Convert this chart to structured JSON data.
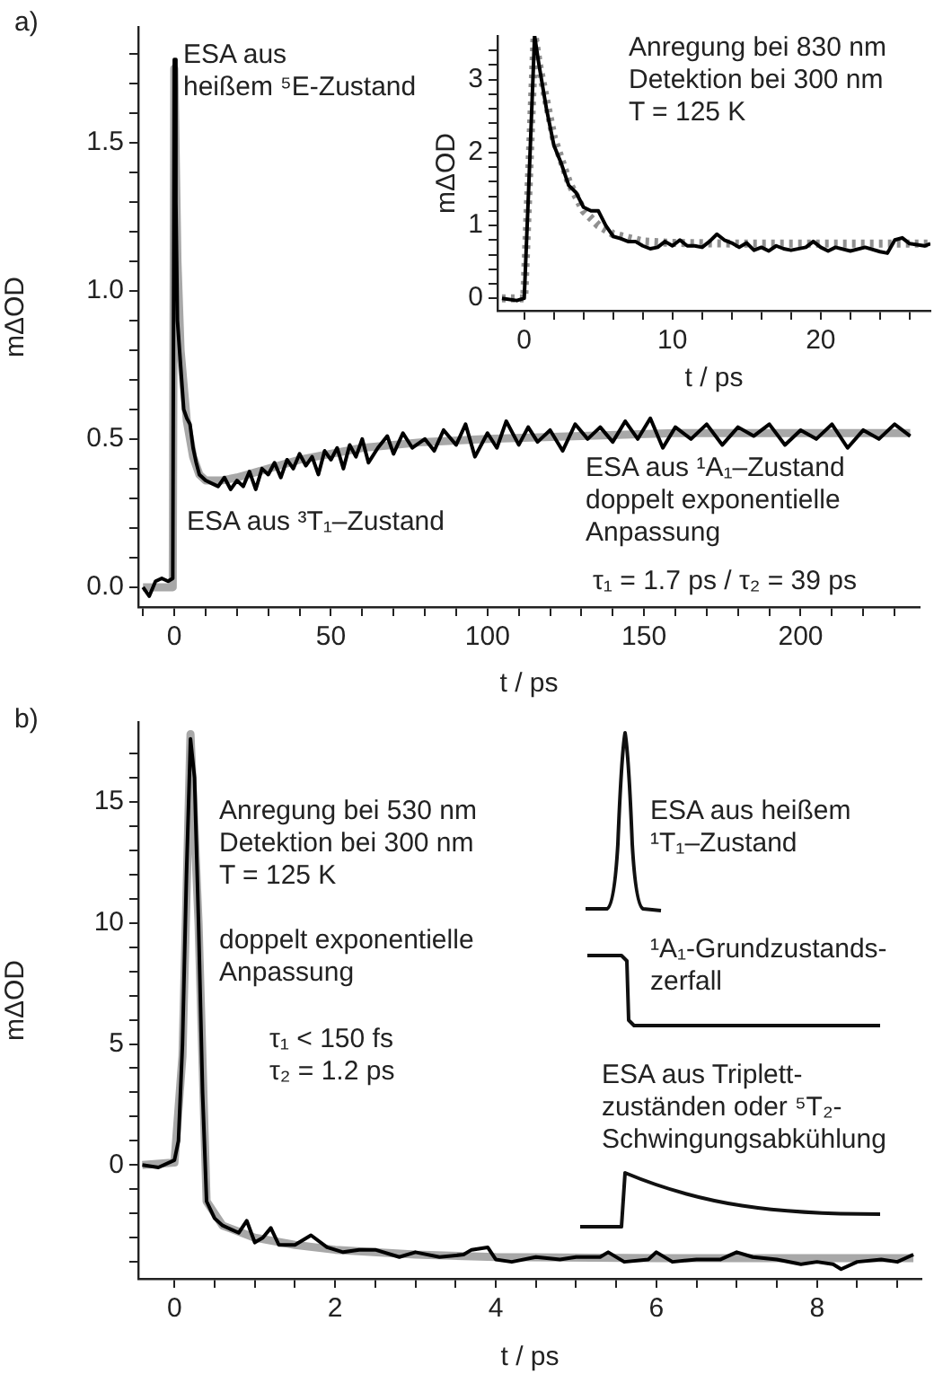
{
  "chart_data": [
    {
      "type": "line",
      "title": "a)",
      "xlabel": "t / ps",
      "ylabel": "mΔOD",
      "legend": false,
      "grid": false,
      "xlim": [
        -11.5,
        238
      ],
      "ylim": [
        -0.067,
        1.89
      ],
      "xticks": [
        0,
        {
          "value": 10,
          "label": null
        },
        {
          "value": 20,
          "label": null
        },
        {
          "value": 30,
          "label": null
        },
        {
          "value": 40,
          "label": null
        },
        50,
        {
          "value": 60,
          "label": null
        },
        {
          "value": 70,
          "label": null
        },
        {
          "value": 80,
          "label": null
        },
        {
          "value": 90,
          "label": null
        },
        100,
        {
          "value": 110,
          "label": null
        },
        {
          "value": 120,
          "label": null
        },
        {
          "value": 130,
          "label": null
        },
        {
          "value": 140,
          "label": null
        },
        150,
        {
          "value": 160,
          "label": null
        },
        {
          "value": 170,
          "label": null
        },
        {
          "value": 180,
          "label": null
        },
        {
          "value": 190,
          "label": null
        },
        200,
        {
          "value": 210,
          "label": null
        },
        {
          "value": 220,
          "label": null
        },
        {
          "value": 230,
          "label": null
        },
        {
          "value": -10,
          "label": null
        }
      ],
      "yticks": [
        {
          "value": 0,
          "label": "0.0"
        },
        {
          "value": 0.1,
          "label": null
        },
        {
          "value": 0.2,
          "label": null
        },
        {
          "value": 0.3,
          "label": null
        },
        {
          "value": 0.4,
          "label": null
        },
        {
          "value": 0.5,
          "label": "0.5"
        },
        {
          "value": 0.6,
          "label": null
        },
        {
          "value": 0.7,
          "label": null
        },
        {
          "value": 0.8,
          "label": null
        },
        {
          "value": 0.9,
          "label": null
        },
        {
          "value": 1,
          "label": "1.0"
        },
        {
          "value": 1.1,
          "label": null
        },
        {
          "value": 1.2,
          "label": null
        },
        {
          "value": 1.3,
          "label": null
        },
        {
          "value": 1.4,
          "label": null
        },
        {
          "value": 1.5,
          "label": "1.5"
        },
        {
          "value": 1.6,
          "label": null
        },
        {
          "value": 1.7,
          "label": null
        },
        {
          "value": 1.8,
          "label": null
        }
      ],
      "series": [
        {
          "color": "#000000",
          "line_style": "solid",
          "x": [
            -10,
            -8,
            -6,
            -4,
            -2,
            -0.5,
            0,
            0.5,
            1,
            2,
            3,
            4,
            5,
            6,
            7,
            8,
            10,
            12,
            14,
            16,
            18,
            20,
            22,
            24,
            26,
            28,
            30,
            32,
            34,
            36,
            38,
            40,
            42,
            44,
            46,
            48,
            50,
            52,
            54,
            56,
            58,
            60,
            62,
            65,
            68,
            70,
            73,
            76,
            80,
            83,
            86,
            90,
            93,
            96,
            100,
            103,
            106,
            110,
            113,
            116,
            120,
            124,
            128,
            132,
            136,
            140,
            144,
            148,
            152,
            156,
            160,
            165,
            170,
            175,
            180,
            185,
            190,
            195,
            200,
            205,
            210,
            215,
            220,
            225,
            230,
            235
          ],
          "values": [
            0,
            -0.03,
            0.02,
            0.03,
            0.02,
            0.03,
            1.78,
            1.3,
            0.9,
            0.75,
            0.6,
            0.57,
            0.55,
            0.47,
            0.42,
            0.38,
            0.36,
            0.35,
            0.34,
            0.37,
            0.33,
            0.36,
            0.34,
            0.39,
            0.33,
            0.4,
            0.38,
            0.42,
            0.37,
            0.43,
            0.4,
            0.45,
            0.41,
            0.44,
            0.38,
            0.46,
            0.43,
            0.47,
            0.4,
            0.48,
            0.44,
            0.5,
            0.42,
            0.47,
            0.51,
            0.45,
            0.52,
            0.47,
            0.5,
            0.46,
            0.53,
            0.48,
            0.55,
            0.44,
            0.52,
            0.47,
            0.56,
            0.48,
            0.54,
            0.49,
            0.53,
            0.46,
            0.55,
            0.5,
            0.54,
            0.49,
            0.56,
            0.5,
            0.57,
            0.47,
            0.54,
            0.5,
            0.55,
            0.48,
            0.54,
            0.51,
            0.55,
            0.48,
            0.53,
            0.5,
            0.55,
            0.47,
            0.53,
            0.5,
            0.55,
            0.51
          ]
        },
        {
          "color": "#a8a8a8",
          "line_style": "solid",
          "x": [
            -10,
            -0.5,
            0,
            1,
            2,
            4,
            6,
            8,
            10,
            15,
            20,
            30,
            40,
            60,
            80,
            100,
            130,
            160,
            200,
            235
          ],
          "values": [
            0,
            0,
            1.75,
            1.1,
            0.8,
            0.56,
            0.44,
            0.38,
            0.36,
            0.36,
            0.37,
            0.4,
            0.43,
            0.47,
            0.49,
            0.5,
            0.51,
            0.52,
            0.52,
            0.52
          ]
        }
      ],
      "annotations": [
        "ESA aus\nheißem ⁵E-Zustand",
        "ESA aus ³T₁–Zustand",
        "ESA aus ¹A₁–Zustand\ndoppelt exponentielle\nAnpassung",
        "τ₁ = 1.7 ps / τ₂ = 39 ps"
      ]
    },
    {
      "type": "line",
      "xlabel": "t / ps",
      "ylabel": "mΔOD",
      "legend": false,
      "grid": false,
      "xlim": [
        -1.8,
        27.4
      ],
      "ylim": [
        -0.17,
        3.6
      ],
      "xticks": [
        0,
        {
          "value": 2,
          "label": null
        },
        {
          "value": 4,
          "label": null
        },
        {
          "value": 6,
          "label": null
        },
        {
          "value": 8,
          "label": null
        },
        10,
        {
          "value": 12,
          "label": null
        },
        {
          "value": 14,
          "label": null
        },
        {
          "value": 16,
          "label": null
        },
        {
          "value": 18,
          "label": null
        },
        20,
        {
          "value": 22,
          "label": null
        },
        {
          "value": 24,
          "label": null
        },
        {
          "value": 26,
          "label": null
        }
      ],
      "yticks": [
        0,
        {
          "value": 0.2,
          "label": null
        },
        {
          "value": 0.4,
          "label": null
        },
        {
          "value": 0.6,
          "label": null
        },
        {
          "value": 0.8,
          "label": null
        },
        1,
        {
          "value": 1.2,
          "label": null
        },
        {
          "value": 1.4,
          "label": null
        },
        {
          "value": 1.6,
          "label": null
        },
        {
          "value": 1.8,
          "label": null
        },
        2,
        {
          "value": 2.2,
          "label": null
        },
        {
          "value": 2.4,
          "label": null
        },
        {
          "value": 2.6,
          "label": null
        },
        {
          "value": 2.8,
          "label": null
        },
        3,
        {
          "value": 3.2,
          "label": null
        },
        {
          "value": 3.4,
          "label": null
        }
      ],
      "series": [
        {
          "color": "#000000",
          "line_style": "solid",
          "x": [
            -1.5,
            -0.5,
            0,
            0.3,
            0.7,
            1,
            1.5,
            2,
            2.5,
            3,
            3.5,
            4,
            4.5,
            5,
            5.5,
            6,
            6.5,
            7,
            7.5,
            8,
            8.5,
            9,
            9.5,
            10,
            10.5,
            11,
            11.5,
            12,
            12.5,
            13,
            13.5,
            14,
            14.5,
            15,
            15.5,
            16,
            16.5,
            17,
            17.5,
            18,
            19,
            19.5,
            20,
            20.5,
            21,
            22,
            23,
            24,
            24.5,
            25,
            25.5,
            26,
            27,
            27.4
          ],
          "values": [
            0,
            -0.03,
            0,
            1.5,
            3.6,
            3.2,
            2.6,
            2.1,
            1.85,
            1.55,
            1.45,
            1.25,
            1.2,
            1.2,
            1,
            0.85,
            0.82,
            0.78,
            0.78,
            0.72,
            0.68,
            0.7,
            0.78,
            0.72,
            0.8,
            0.72,
            0.72,
            0.7,
            0.78,
            0.88,
            0.8,
            0.76,
            0.7,
            0.76,
            0.66,
            0.7,
            0.65,
            0.72,
            0.68,
            0.66,
            0.7,
            0.78,
            0.7,
            0.65,
            0.7,
            0.65,
            0.7,
            0.64,
            0.62,
            0.8,
            0.83,
            0.75,
            0.72,
            0.75
          ]
        },
        {
          "color": "#909090",
          "line_style": "dotted",
          "x": [
            -1.5,
            0,
            0.7,
            1,
            2,
            3,
            4,
            5,
            6,
            8,
            10,
            15,
            20,
            27.4
          ],
          "values": [
            0,
            0,
            3.6,
            3.2,
            2.2,
            1.6,
            1.2,
            1,
            0.88,
            0.78,
            0.76,
            0.75,
            0.75,
            0.75
          ]
        }
      ],
      "annotations": [
        "Anregung bei 830 nm\nDetektion bei 300 nm\nT = 125 K"
      ]
    },
    {
      "type": "line",
      "title": "b)",
      "xlabel": "t / ps",
      "ylabel": "mΔOD",
      "legend": false,
      "grid": false,
      "xlim": [
        -0.45,
        9.3
      ],
      "ylim": [
        -4.7,
        18.3
      ],
      "xticks": [
        0,
        {
          "value": 0.5,
          "label": null
        },
        {
          "value": 1,
          "label": null
        },
        {
          "value": 1.5,
          "label": null
        },
        2,
        {
          "value": 2.5,
          "label": null
        },
        {
          "value": 3,
          "label": null
        },
        {
          "value": 3.5,
          "label": null
        },
        4,
        {
          "value": 4.5,
          "label": null
        },
        {
          "value": 5,
          "label": null
        },
        {
          "value": 5.5,
          "label": null
        },
        6,
        {
          "value": 6.5,
          "label": null
        },
        {
          "value": 7,
          "label": null
        },
        {
          "value": 7.5,
          "label": null
        },
        8,
        {
          "value": 8.5,
          "label": null
        },
        {
          "value": 9,
          "label": null
        }
      ],
      "yticks": [
        {
          "value": -4,
          "label": null
        },
        {
          "value": -3,
          "label": null
        },
        {
          "value": -2,
          "label": null
        },
        {
          "value": -1,
          "label": null
        },
        0,
        {
          "value": 1,
          "label": null
        },
        {
          "value": 2,
          "label": null
        },
        {
          "value": 3,
          "label": null
        },
        {
          "value": 4,
          "label": null
        },
        5,
        {
          "value": 6,
          "label": null
        },
        {
          "value": 7,
          "label": null
        },
        {
          "value": 8,
          "label": null
        },
        {
          "value": 9,
          "label": null
        },
        10,
        {
          "value": 11,
          "label": null
        },
        {
          "value": 12,
          "label": null
        },
        {
          "value": 13,
          "label": null
        },
        {
          "value": 14,
          "label": null
        },
        15,
        {
          "value": 16,
          "label": null
        },
        {
          "value": 17,
          "label": null
        }
      ],
      "series": [
        {
          "color": "#000000",
          "line_style": "solid",
          "x": [
            -0.4,
            -0.2,
            0,
            0.05,
            0.1,
            0.15,
            0.2,
            0.25,
            0.3,
            0.35,
            0.4,
            0.5,
            0.6,
            0.8,
            0.9,
            1,
            1.1,
            1.2,
            1.3,
            1.5,
            1.7,
            1.9,
            2.1,
            2.3,
            2.5,
            2.8,
            3,
            3.3,
            3.6,
            3.7,
            3.9,
            4,
            4.2,
            4.5,
            4.8,
            5,
            5.3,
            5.4,
            5.6,
            5.9,
            6,
            6.2,
            6.5,
            6.8,
            7,
            7.2,
            7.5,
            7.8,
            8,
            8.2,
            8.3,
            8.5,
            8.8,
            9,
            9.2
          ],
          "values": [
            0,
            -0.1,
            0.2,
            1,
            5,
            12,
            17.6,
            16,
            10,
            3,
            -1.5,
            -2.2,
            -2.5,
            -2.8,
            -2.3,
            -3.2,
            -3,
            -2.6,
            -3.3,
            -3.3,
            -2.9,
            -3.4,
            -3.6,
            -3.5,
            -3.5,
            -3.8,
            -3.6,
            -3.8,
            -3.7,
            -3.5,
            -3.4,
            -3.9,
            -4,
            -3.8,
            -3.9,
            -3.8,
            -3.8,
            -3.6,
            -4,
            -3.9,
            -3.6,
            -4,
            -3.9,
            -3.9,
            -3.6,
            -3.8,
            -3.9,
            -4.1,
            -4,
            -4.1,
            -4.3,
            -4,
            -3.9,
            -4,
            -3.7
          ]
        },
        {
          "color": "#a8a8a8",
          "line_style": "solid",
          "x": [
            -0.4,
            0,
            0.1,
            0.2,
            0.3,
            0.4,
            0.6,
            1,
            1.5,
            2,
            3,
            4,
            6,
            9.2
          ],
          "values": [
            0,
            0.1,
            4.5,
            17.8,
            10,
            -1.5,
            -2.5,
            -3,
            -3.3,
            -3.5,
            -3.7,
            -3.8,
            -3.85,
            -3.85
          ]
        }
      ],
      "annotations": [
        "Anregung bei 530 nm\nDetektion bei 300 nm\nT = 125 K",
        "doppelt exponentielle\nAnpassung",
        "τ₁ < 150 fs\nτ₂ = 1.2 ps",
        "ESA aus heißem\n¹T₁–Zustand",
        "¹A₁-Grundzustands-\nzerfall",
        "ESA aus Triplett-\nzuständen oder ⁵T₂-\nSchwingungsabkühlung"
      ]
    }
  ]
}
